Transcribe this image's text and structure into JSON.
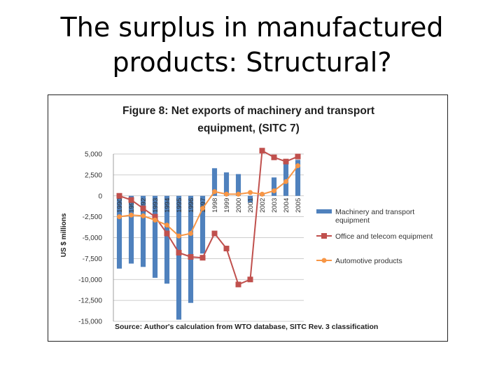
{
  "slide": {
    "title_line1": "The surplus in manufactured",
    "title_line2": "products: Structural?"
  },
  "chart_data": {
    "type": "bar",
    "title_line1": "Figure 8: Net exports of machinery and transport",
    "title_line2": "equipment, (SITC 7)",
    "ylabel": "US $ millions",
    "ylim": [
      -15000,
      5000
    ],
    "yticks": [
      5000,
      2500,
      0,
      -2500,
      -5000,
      -7500,
      -10000,
      -12500,
      -15000
    ],
    "ytick_labels": [
      "5,000",
      "2,500",
      "0",
      "-2,500",
      "-5,000",
      "-7,500",
      "-10,000",
      "-12,500",
      "-15,000"
    ],
    "categories": [
      "1990",
      "1991",
      "1992",
      "1993",
      "1994",
      "1995",
      "1996",
      "1997",
      "1998",
      "1999",
      "2000",
      "2001",
      "2002",
      "2003",
      "2004",
      "2005"
    ],
    "series": [
      {
        "name": "Machinery and transport equipment",
        "kind": "bar",
        "color": "#4f81bd",
        "values": [
          -8700,
          -8100,
          -8500,
          -9800,
          -10500,
          -14800,
          -12800,
          -6900,
          3300,
          2800,
          2600,
          -800,
          300,
          2200,
          4300,
          4300
        ]
      },
      {
        "name": "Office and telecom equipment",
        "kind": "line",
        "color": "#c0504d",
        "values": [
          0,
          -500,
          -1500,
          -2500,
          -4500,
          -6800,
          -7300,
          -7400,
          -4500,
          -6300,
          -10600,
          -10000,
          5400,
          4600,
          4100,
          4700
        ]
      },
      {
        "name": "Automotive products",
        "kind": "line",
        "color": "#f79646",
        "values": [
          -2500,
          -2300,
          -2400,
          -2900,
          -3500,
          -4800,
          -4500,
          -1500,
          500,
          200,
          200,
          400,
          200,
          600,
          1700,
          3600
        ]
      }
    ],
    "legend": {
      "placement": "right",
      "entries": [
        {
          "line1": "Machinery and transport",
          "line2": "equipment"
        },
        {
          "line1": "Office and telecom equipment",
          "line2": ""
        },
        {
          "line1": "Automotive products",
          "line2": ""
        }
      ]
    },
    "source": "Source: Author's calculation  from WTO database,   SITC Rev. 3  classification"
  }
}
